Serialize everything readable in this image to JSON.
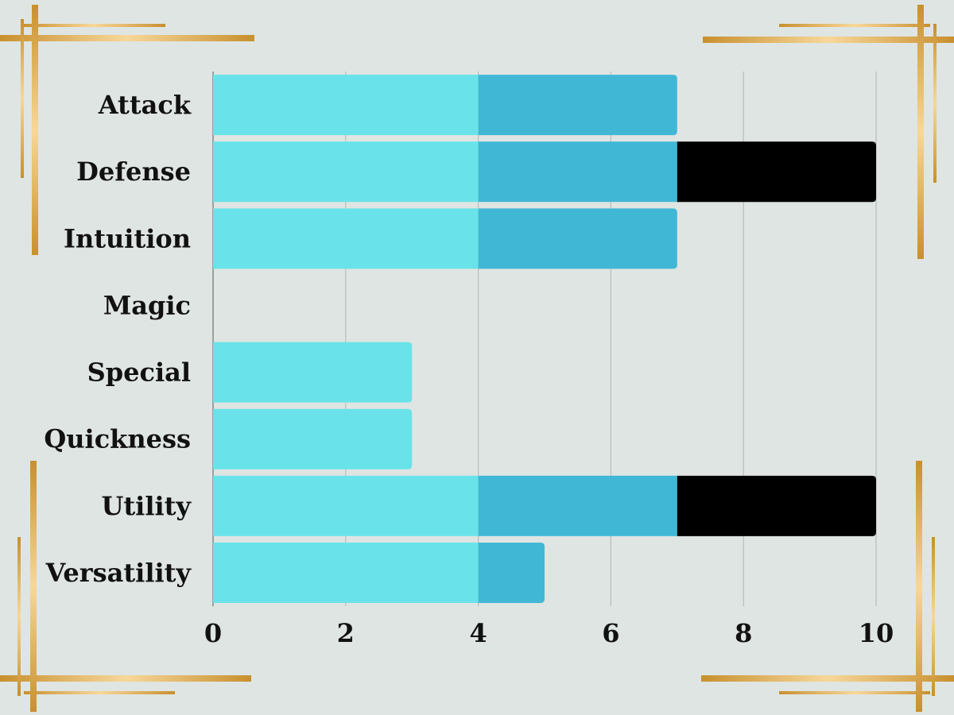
{
  "chart_data": {
    "type": "bar",
    "orientation": "horizontal",
    "stacked": true,
    "categories": [
      "Attack",
      "Defense",
      "Intuition",
      "Magic",
      "Special",
      "Quickness",
      "Utility",
      "Versatility"
    ],
    "series": [
      {
        "color": "#69e3e9",
        "values": [
          4,
          4,
          4,
          0,
          3,
          3,
          4,
          4
        ]
      },
      {
        "color": "#41b7d6",
        "values": [
          3,
          3,
          3,
          0,
          0,
          0,
          3,
          1
        ]
      },
      {
        "color": "#000000",
        "values": [
          0,
          3,
          0,
          0,
          0,
          0,
          3,
          0
        ]
      }
    ],
    "xlim": [
      0,
      10
    ],
    "xticks": [
      "0",
      "2",
      "4",
      "6",
      "8",
      "10"
    ],
    "grid": true,
    "legend": "none"
  },
  "decor": {
    "frame_color": "#d9a54a",
    "frame_highlight": "#f5cf8e",
    "background": "#dfe5e2"
  }
}
